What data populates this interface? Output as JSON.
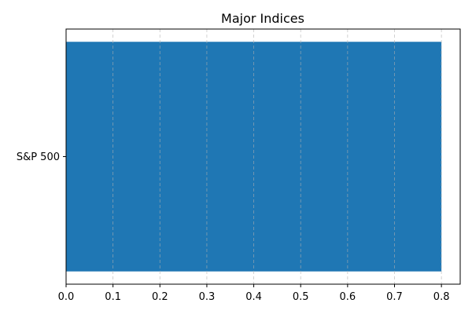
{
  "chart_data": {
    "type": "bar",
    "orientation": "horizontal",
    "title": "Major Indices",
    "xlabel": "",
    "ylabel": "",
    "categories": [
      "S&P 500"
    ],
    "values": [
      0.8
    ],
    "xlim": [
      0,
      0.84
    ],
    "xticks": [
      0.0,
      0.1,
      0.2,
      0.3,
      0.4,
      0.5,
      0.6,
      0.7,
      0.8
    ],
    "xtick_labels": [
      "0.0",
      "0.1",
      "0.2",
      "0.3",
      "0.4",
      "0.5",
      "0.6",
      "0.7",
      "0.8"
    ],
    "grid": "x-dashed",
    "bar_color": "#1f77b4"
  }
}
